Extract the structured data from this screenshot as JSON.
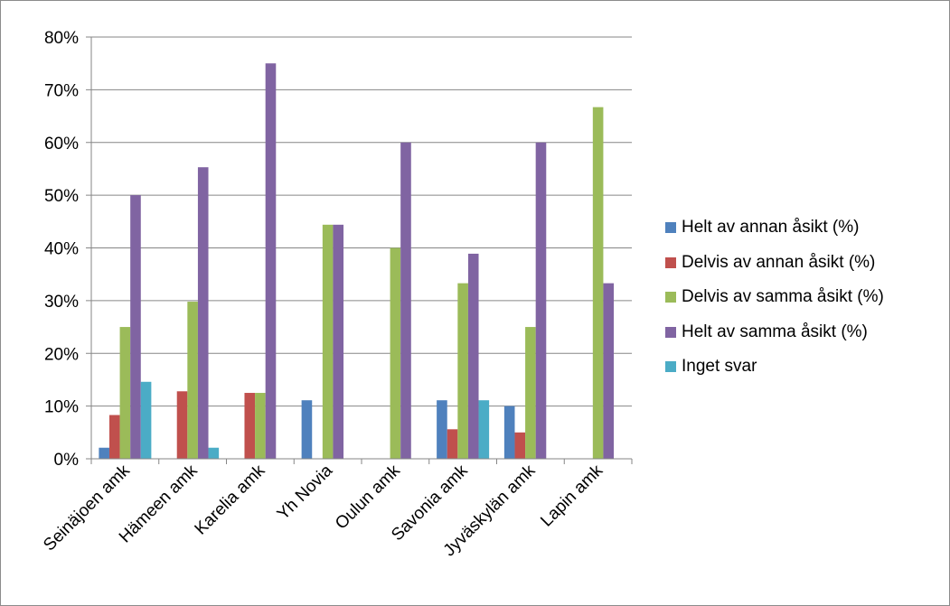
{
  "chart_data": {
    "type": "bar",
    "categories": [
      "Seinäjoen amk",
      "Hämeen amk",
      "Karelia amk",
      "Yh Novia",
      "Oulun amk",
      "Savonia amk",
      "Jyväskylän amk",
      "Lapin amk"
    ],
    "series": [
      {
        "name": "Helt av annan åsikt (%)",
        "color": "#4f81bd",
        "values": [
          2.1,
          0,
          0,
          11.1,
          0,
          11.1,
          10,
          0
        ]
      },
      {
        "name": "Delvis av annan åsikt (%)",
        "color": "#c0504d",
        "values": [
          8.3,
          12.8,
          12.5,
          0,
          0,
          5.6,
          5,
          0
        ]
      },
      {
        "name": "Delvis av samma åsikt (%)",
        "color": "#9bbb59",
        "values": [
          25,
          29.8,
          12.5,
          44.4,
          40,
          33.3,
          25,
          66.7
        ]
      },
      {
        "name": "Helt av samma åsikt (%)",
        "color": "#8064a2",
        "values": [
          50,
          55.3,
          75,
          44.4,
          60,
          38.9,
          60,
          33.3
        ]
      },
      {
        "name": "Inget svar",
        "color": "#4bacc6",
        "values": [
          14.6,
          2.1,
          0,
          0,
          0,
          11.1,
          0,
          0
        ]
      }
    ],
    "y_ticks": [
      "0%",
      "10%",
      "20%",
      "30%",
      "40%",
      "50%",
      "60%",
      "70%",
      "80%"
    ],
    "ylim": [
      0,
      80
    ],
    "grid": true,
    "legend_position": "right"
  }
}
